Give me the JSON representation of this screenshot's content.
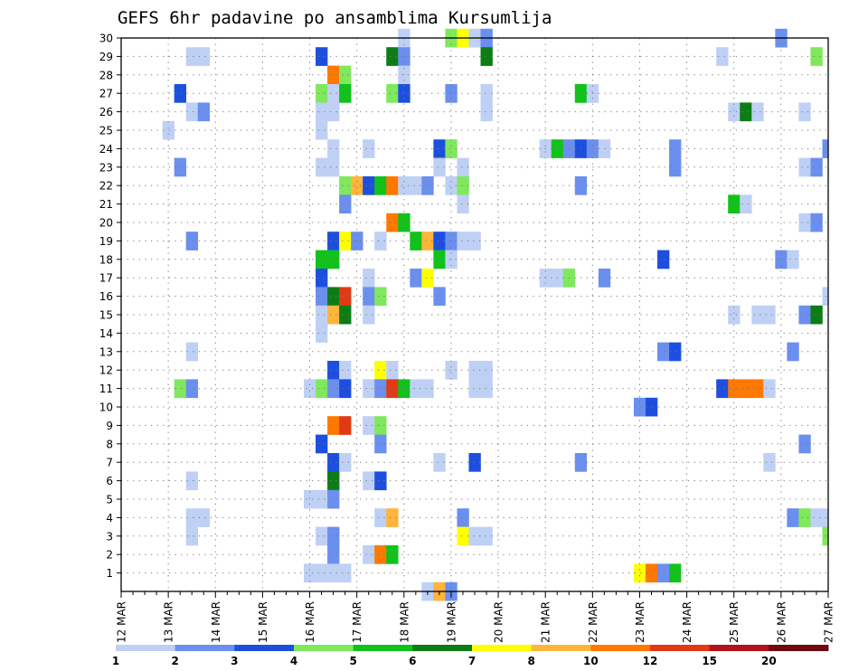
{
  "chart_data": {
    "type": "heatmap",
    "title": "GEFS 6hr padavine po ansamblima Kursumlija",
    "xlabel": "",
    "ylabel": "",
    "x_tick_labels": [
      "12 MAR",
      "13 MAR",
      "14 MAR",
      "15 MAR",
      "16 MAR",
      "17 MAR",
      "18 MAR",
      "19 MAR",
      "20 MAR",
      "21 MAR",
      "22 MAR",
      "23 MAR",
      "24 MAR",
      "25 MAR",
      "26 MAR",
      "27 MAR"
    ],
    "y_tick_labels": [
      "1",
      "2",
      "3",
      "4",
      "5",
      "6",
      "7",
      "8",
      "9",
      "10",
      "11",
      "12",
      "13",
      "14",
      "15",
      "16",
      "17",
      "18",
      "19",
      "20",
      "21",
      "22",
      "23",
      "24",
      "25",
      "26",
      "27",
      "28",
      "29",
      "30"
    ],
    "xlim": [
      0,
      60
    ],
    "ylim": [
      0,
      30
    ],
    "x_step": "6hr",
    "grid": true,
    "colorbar": {
      "orientation": "horizontal",
      "placement": "bottom",
      "labels": [
        "1",
        "2",
        "3",
        "4",
        "5",
        "6",
        "7",
        "8",
        "10",
        "12",
        "15",
        "20"
      ],
      "colors": [
        "#bfd0f5",
        "#6b8fef",
        "#1d4fdf",
        "#7fe85c",
        "#10c21a",
        "#0c7d14",
        "#ffff00",
        "#ffb43a",
        "#ff7800",
        "#e23a14",
        "#b0131a",
        "#6e0a10"
      ]
    },
    "cells": [
      [
        24,
        30,
        0
      ],
      [
        28,
        30,
        3
      ],
      [
        29,
        30,
        6
      ],
      [
        30,
        30,
        0
      ],
      [
        31,
        30,
        1
      ],
      [
        56,
        30,
        1
      ],
      [
        6,
        29,
        0
      ],
      [
        7,
        29,
        0
      ],
      [
        17,
        29,
        2
      ],
      [
        23,
        29,
        5
      ],
      [
        24,
        29,
        1
      ],
      [
        31,
        29,
        5
      ],
      [
        51,
        29,
        0
      ],
      [
        59,
        29,
        3
      ],
      [
        18,
        28,
        8
      ],
      [
        19,
        28,
        3
      ],
      [
        24,
        28,
        0
      ],
      [
        5,
        27,
        2
      ],
      [
        17,
        27,
        3
      ],
      [
        18,
        27,
        0
      ],
      [
        19,
        27,
        4
      ],
      [
        23,
        27,
        3
      ],
      [
        24,
        27,
        2
      ],
      [
        28,
        27,
        1
      ],
      [
        31,
        27,
        0
      ],
      [
        39,
        27,
        4
      ],
      [
        40,
        27,
        0
      ],
      [
        6,
        26,
        0
      ],
      [
        7,
        26,
        1
      ],
      [
        17,
        26,
        0
      ],
      [
        18,
        26,
        0
      ],
      [
        31,
        26,
        0
      ],
      [
        52,
        26,
        0
      ],
      [
        53,
        26,
        5
      ],
      [
        54,
        26,
        0
      ],
      [
        58,
        26,
        0
      ],
      [
        4,
        25,
        0
      ],
      [
        17,
        25,
        0
      ],
      [
        18,
        24,
        0
      ],
      [
        21,
        24,
        0
      ],
      [
        27,
        24,
        2
      ],
      [
        28,
        24,
        3
      ],
      [
        36,
        24,
        0
      ],
      [
        37,
        24,
        4
      ],
      [
        38,
        24,
        1
      ],
      [
        39,
        24,
        2
      ],
      [
        40,
        24,
        1
      ],
      [
        41,
        24,
        0
      ],
      [
        47,
        24,
        1
      ],
      [
        60,
        24,
        1
      ],
      [
        5,
        23,
        1
      ],
      [
        17,
        23,
        0
      ],
      [
        18,
        23,
        0
      ],
      [
        27,
        23,
        0
      ],
      [
        29,
        23,
        0
      ],
      [
        47,
        23,
        1
      ],
      [
        58,
        23,
        0
      ],
      [
        59,
        23,
        1
      ],
      [
        19,
        22,
        3
      ],
      [
        20,
        22,
        7
      ],
      [
        21,
        22,
        2
      ],
      [
        22,
        22,
        4
      ],
      [
        23,
        22,
        8
      ],
      [
        24,
        22,
        0
      ],
      [
        25,
        22,
        0
      ],
      [
        26,
        22,
        1
      ],
      [
        28,
        22,
        0
      ],
      [
        29,
        22,
        3
      ],
      [
        39,
        22,
        1
      ],
      [
        19,
        21,
        1
      ],
      [
        29,
        21,
        0
      ],
      [
        52,
        21,
        4
      ],
      [
        53,
        21,
        0
      ],
      [
        23,
        20,
        8
      ],
      [
        24,
        20,
        4
      ],
      [
        58,
        20,
        0
      ],
      [
        59,
        20,
        1
      ],
      [
        6,
        19,
        1
      ],
      [
        18,
        19,
        2
      ],
      [
        19,
        19,
        6
      ],
      [
        20,
        19,
        1
      ],
      [
        22,
        19,
        0
      ],
      [
        25,
        19,
        4
      ],
      [
        26,
        19,
        7
      ],
      [
        27,
        19,
        2
      ],
      [
        28,
        19,
        1
      ],
      [
        29,
        19,
        0
      ],
      [
        30,
        19,
        0
      ],
      [
        17,
        18,
        4
      ],
      [
        18,
        18,
        4
      ],
      [
        27,
        18,
        4
      ],
      [
        28,
        18,
        0
      ],
      [
        46,
        18,
        2
      ],
      [
        56,
        18,
        1
      ],
      [
        57,
        18,
        0
      ],
      [
        17,
        17,
        2
      ],
      [
        21,
        17,
        0
      ],
      [
        25,
        17,
        1
      ],
      [
        26,
        17,
        6
      ],
      [
        36,
        17,
        0
      ],
      [
        37,
        17,
        0
      ],
      [
        38,
        17,
        3
      ],
      [
        41,
        17,
        1
      ],
      [
        17,
        16,
        1
      ],
      [
        18,
        16,
        5
      ],
      [
        19,
        16,
        9
      ],
      [
        21,
        16,
        1
      ],
      [
        22,
        16,
        3
      ],
      [
        27,
        16,
        1
      ],
      [
        60,
        16,
        0
      ],
      [
        17,
        15,
        0
      ],
      [
        18,
        15,
        7
      ],
      [
        19,
        15,
        5
      ],
      [
        21,
        15,
        0
      ],
      [
        52,
        15,
        0
      ],
      [
        54,
        15,
        0
      ],
      [
        55,
        15,
        0
      ],
      [
        58,
        15,
        1
      ],
      [
        59,
        15,
        5
      ],
      [
        17,
        14,
        0
      ],
      [
        6,
        13,
        0
      ],
      [
        46,
        13,
        1
      ],
      [
        47,
        13,
        2
      ],
      [
        57,
        13,
        1
      ],
      [
        18,
        12,
        2
      ],
      [
        19,
        12,
        0
      ],
      [
        22,
        12,
        6
      ],
      [
        23,
        12,
        0
      ],
      [
        28,
        12,
        0
      ],
      [
        30,
        12,
        0
      ],
      [
        31,
        12,
        0
      ],
      [
        5,
        11,
        3
      ],
      [
        6,
        11,
        1
      ],
      [
        16,
        11,
        0
      ],
      [
        17,
        11,
        3
      ],
      [
        18,
        11,
        1
      ],
      [
        19,
        11,
        2
      ],
      [
        21,
        11,
        0
      ],
      [
        22,
        11,
        1
      ],
      [
        23,
        11,
        9
      ],
      [
        24,
        11,
        4
      ],
      [
        25,
        11,
        0
      ],
      [
        26,
        11,
        0
      ],
      [
        30,
        11,
        0
      ],
      [
        31,
        11,
        0
      ],
      [
        51,
        11,
        2
      ],
      [
        52,
        11,
        8
      ],
      [
        53,
        11,
        8
      ],
      [
        54,
        11,
        8
      ],
      [
        55,
        11,
        0
      ],
      [
        44,
        10,
        1
      ],
      [
        45,
        10,
        2
      ],
      [
        18,
        9,
        8
      ],
      [
        19,
        9,
        9
      ],
      [
        21,
        9,
        0
      ],
      [
        22,
        9,
        3
      ],
      [
        17,
        8,
        2
      ],
      [
        22,
        8,
        1
      ],
      [
        58,
        8,
        1
      ],
      [
        18,
        7,
        2
      ],
      [
        19,
        7,
        0
      ],
      [
        27,
        7,
        0
      ],
      [
        30,
        7,
        2
      ],
      [
        39,
        7,
        1
      ],
      [
        55,
        7,
        0
      ],
      [
        6,
        6,
        0
      ],
      [
        18,
        6,
        5
      ],
      [
        21,
        6,
        0
      ],
      [
        22,
        6,
        2
      ],
      [
        16,
        5,
        0
      ],
      [
        17,
        5,
        0
      ],
      [
        18,
        5,
        1
      ],
      [
        6,
        4,
        0
      ],
      [
        7,
        4,
        0
      ],
      [
        22,
        4,
        0
      ],
      [
        23,
        4,
        7
      ],
      [
        29,
        4,
        1
      ],
      [
        57,
        4,
        1
      ],
      [
        58,
        4,
        3
      ],
      [
        59,
        4,
        0
      ],
      [
        60,
        4,
        0
      ],
      [
        6,
        3,
        0
      ],
      [
        17,
        3,
        0
      ],
      [
        18,
        3,
        1
      ],
      [
        29,
        3,
        6
      ],
      [
        30,
        3,
        0
      ],
      [
        31,
        3,
        0
      ],
      [
        60,
        3,
        3
      ],
      [
        18,
        2,
        1
      ],
      [
        21,
        2,
        0
      ],
      [
        22,
        2,
        8
      ],
      [
        23,
        2,
        4
      ],
      [
        16,
        1,
        0
      ],
      [
        17,
        1,
        0
      ],
      [
        18,
        1,
        0
      ],
      [
        19,
        1,
        0
      ],
      [
        44,
        1,
        6
      ],
      [
        45,
        1,
        8
      ],
      [
        46,
        1,
        1
      ],
      [
        47,
        1,
        4
      ],
      [
        26,
        0,
        0
      ],
      [
        27,
        0,
        7
      ],
      [
        28,
        0,
        1
      ]
    ]
  }
}
